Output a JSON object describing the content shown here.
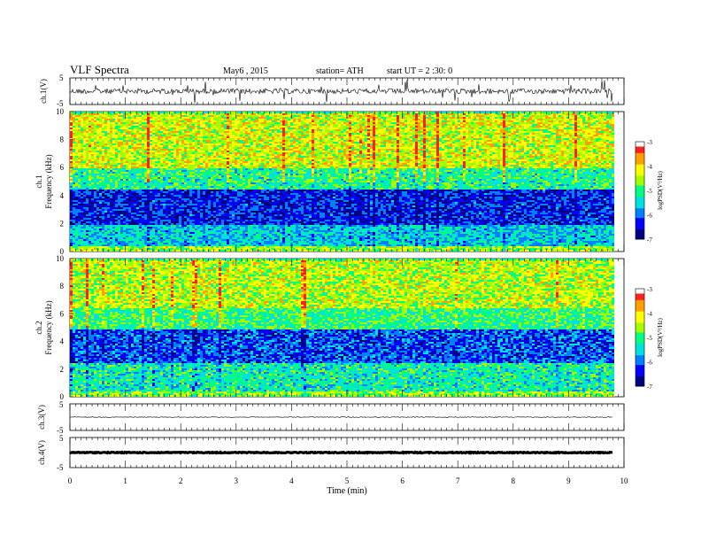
{
  "header": {
    "title": "VLF  Spectra",
    "date": "May6  , 2015",
    "station": "station= ATH",
    "start": "start  UT  =   2  :30: 0"
  },
  "colors": {
    "colormap": [
      "#000080",
      "#0000ff",
      "#0080ff",
      "#00e0e0",
      "#00ff80",
      "#a0ff00",
      "#ffff00",
      "#ffa000",
      "#ff2020",
      "#ffffff"
    ]
  },
  "chart_data": [
    {
      "type": "line",
      "panel": "ch1-waveform",
      "ylabel": "ch.1(V)",
      "ylim": [
        -5,
        5
      ],
      "yticks": [
        "5",
        "-5"
      ],
      "xlim": [
        0,
        10
      ],
      "baseline": 0,
      "description_values": {
        "mean": 0,
        "noise_amplitude": 0.8,
        "spike_max": 4
      },
      "x_end": 9.8
    },
    {
      "type": "heatmap",
      "panel": "ch1-spectrogram",
      "ylabel": "ch.1\nFrequency (kHz)",
      "ylim": [
        0,
        10
      ],
      "yticks": [
        "0",
        "2",
        "4",
        "6",
        "8",
        "10"
      ],
      "xlim": [
        0,
        10
      ],
      "x_end": 9.8,
      "colorbar": {
        "label": "logPSD(V²/Hz)",
        "range": [
          -7,
          -3
        ],
        "ticks": [
          "-3",
          "-4",
          "-5",
          "-6",
          "-7"
        ]
      },
      "bands": [
        {
          "from": 0,
          "to": 0.5,
          "level": -4.5
        },
        {
          "from": 0.5,
          "to": 2,
          "level": -5.5
        },
        {
          "from": 2,
          "to": 4.5,
          "level": -6.3
        },
        {
          "from": 4.5,
          "to": 6,
          "level": -5.1
        },
        {
          "from": 6,
          "to": 10,
          "level": -4.3
        }
      ]
    },
    {
      "type": "heatmap",
      "panel": "ch2-spectrogram",
      "ylabel": "ch.2\nFrequency (kHz)",
      "ylim": [
        0,
        10
      ],
      "yticks": [
        "0",
        "2",
        "4",
        "6",
        "8",
        "10"
      ],
      "xlim": [
        0,
        10
      ],
      "x_end": 9.8,
      "colorbar": {
        "label": "logPSD(V²/Hz)",
        "range": [
          -7,
          -3
        ],
        "ticks": [
          "-3",
          "-4",
          "-5",
          "-6",
          "-7"
        ]
      },
      "bands": [
        {
          "from": 0,
          "to": 0.5,
          "level": -4.6
        },
        {
          "from": 0.5,
          "to": 2.5,
          "level": -5.2
        },
        {
          "from": 2.5,
          "to": 5,
          "level": -6.1
        },
        {
          "from": 5,
          "to": 6.5,
          "level": -5.0
        },
        {
          "from": 6.5,
          "to": 10,
          "level": -4.4
        }
      ]
    },
    {
      "type": "line",
      "panel": "ch3-waveform",
      "ylabel": "ch.3(V)",
      "ylim": [
        -5,
        5
      ],
      "yticks": [
        "5",
        "-5"
      ],
      "xlim": [
        0,
        10
      ],
      "baseline": 0,
      "x_end": 9.8
    },
    {
      "type": "line",
      "panel": "ch4-waveform",
      "ylabel": "ch.4(V)",
      "ylim": [
        -5,
        5
      ],
      "yticks": [
        "5",
        "-5"
      ],
      "xlim": [
        0,
        10
      ],
      "baseline": 0,
      "x_end": 9.8
    }
  ],
  "xaxis": {
    "label": "Time  (min)",
    "ticks": [
      "0",
      "1",
      "2",
      "3",
      "4",
      "5",
      "6",
      "7",
      "8",
      "9",
      "10"
    ]
  }
}
